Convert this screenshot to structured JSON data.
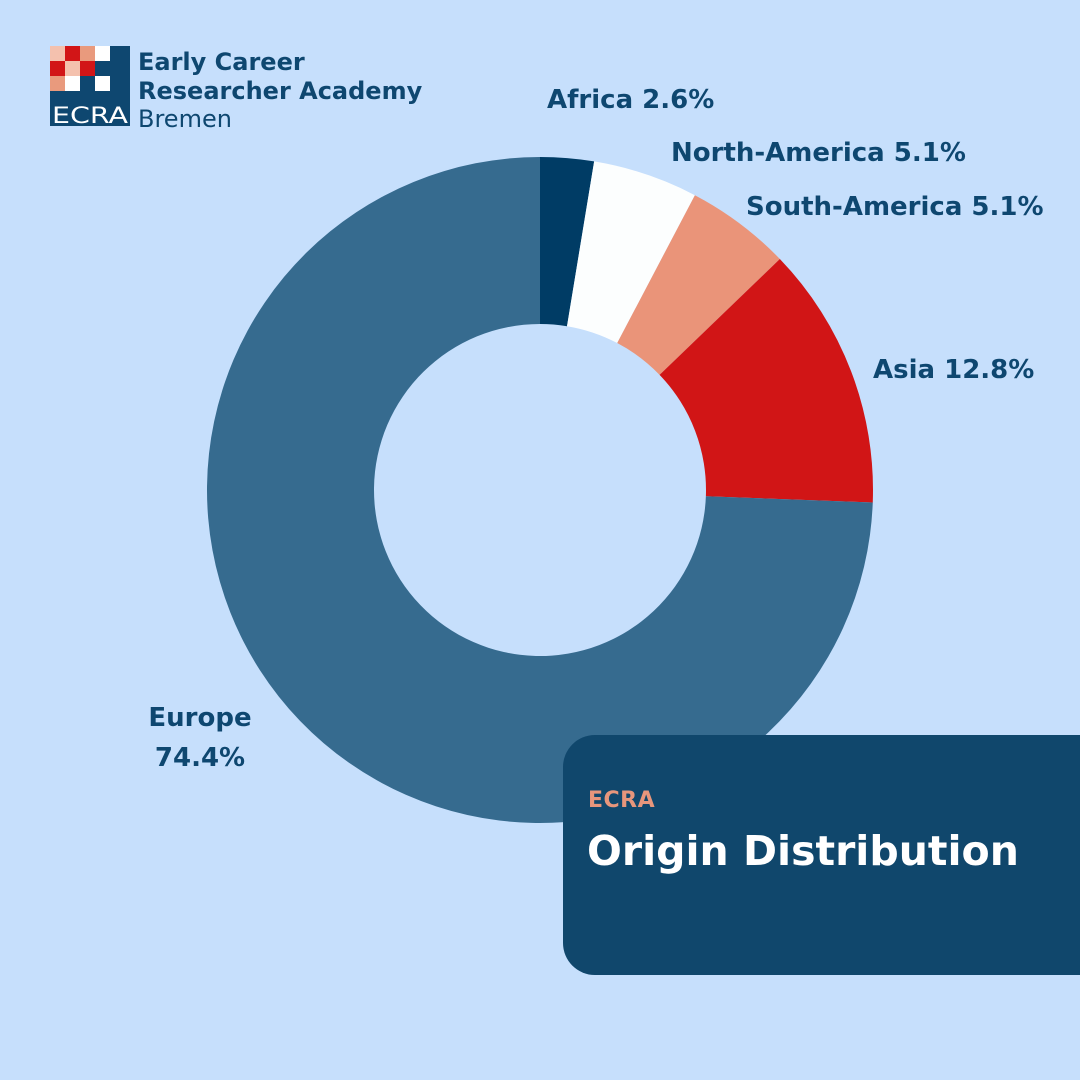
{
  "logo": {
    "abbrev": "ECRA",
    "line1": "Early Career",
    "line2": "Researcher Academy",
    "line3": "Bremen",
    "colors": {
      "navy": "#0e4770",
      "red": "#d21517",
      "salmon": "#e99a7d",
      "pink": "#f4c1ae",
      "white": "#ffffff"
    }
  },
  "card": {
    "kicker": "ECRA",
    "title": "Origin Distribution",
    "background": "#10476c",
    "kicker_color": "#e7967c"
  },
  "chart_data": {
    "type": "pie",
    "variant": "donut",
    "title": "Origin Distribution",
    "slices": [
      {
        "label": "Africa",
        "value": 2.6,
        "display": "2.6%",
        "color": "#003c65"
      },
      {
        "label": "North-America",
        "value": 5.1,
        "display": "5.1%",
        "color": "#fcfefe"
      },
      {
        "label": "South-America",
        "value": 5.1,
        "display": "5.1%",
        "color": "#ea9479"
      },
      {
        "label": "Asia",
        "value": 12.8,
        "display": "12.8%",
        "color": "#d11516"
      },
      {
        "label": "Europe",
        "value": 74.4,
        "display": "74.4%",
        "color": "#366b8f"
      }
    ],
    "labels": {
      "africa": "Africa 2.6%",
      "north_america": "North-America 5.1%",
      "south_america": "South-America 5.1%",
      "asia": "Asia 12.8%",
      "europe_name": "Europe",
      "europe_value": "74.4%"
    },
    "legend": "none",
    "grid": false
  }
}
